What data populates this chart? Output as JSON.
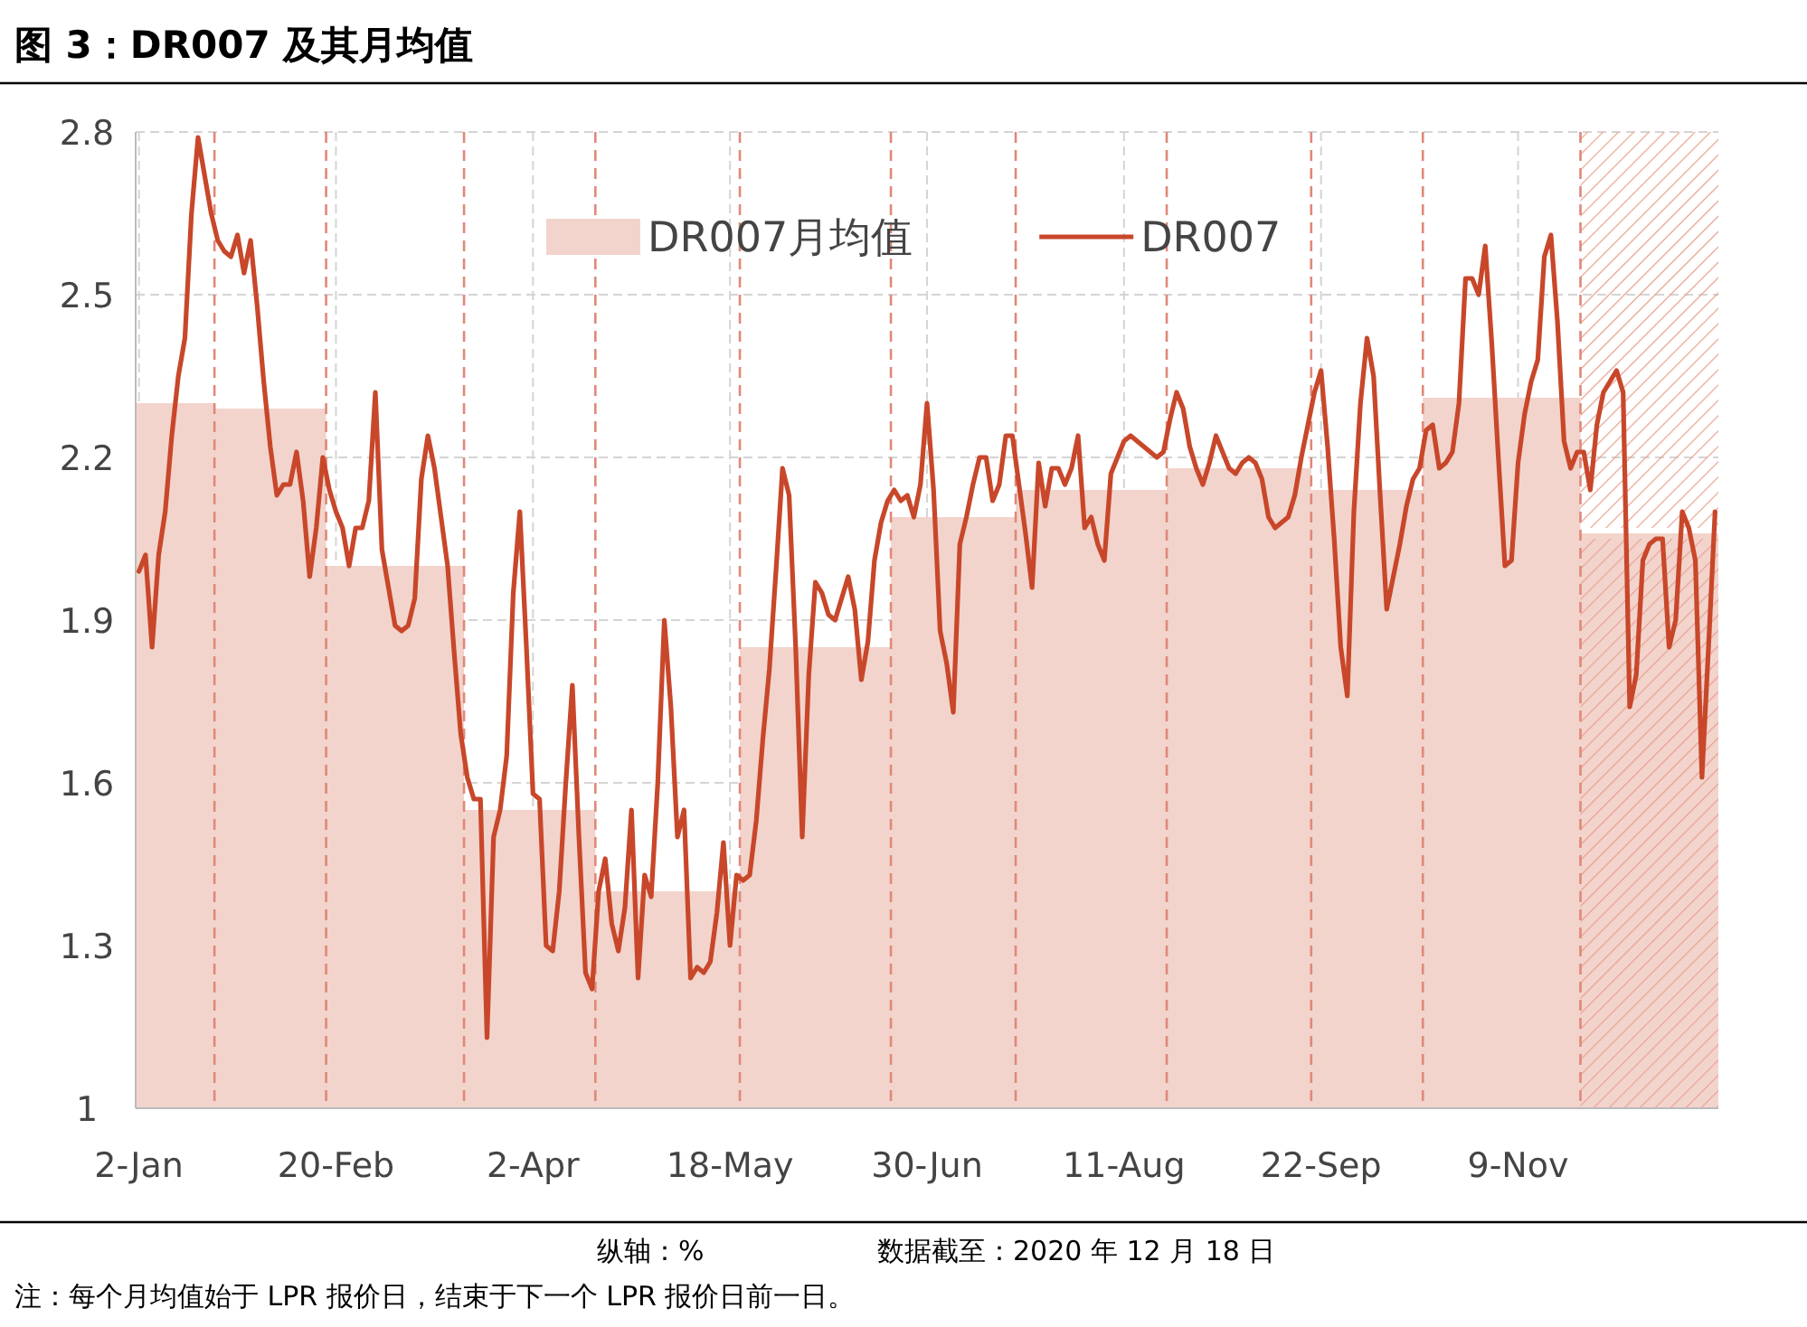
{
  "chart_data": {
    "type": "line",
    "title": "图 3：DR007 及其月均值",
    "annotations": [
      "纵轴：%",
      "数据截至：2020 年 12 月 18 日",
      "注：每个月均值始于 LPR 报价日，结束于下一个 LPR 报价日前一日。"
    ],
    "categories": [
      "2-Jan",
      null,
      null,
      null,
      null,
      null,
      null,
      null,
      null,
      null,
      null,
      null,
      null,
      null,
      null,
      null,
      null,
      null,
      null,
      null,
      null,
      null,
      null,
      null,
      null,
      null,
      null,
      null,
      null,
      null,
      "20-Feb",
      null,
      null,
      null,
      null,
      null,
      null,
      null,
      null,
      null,
      null,
      null,
      null,
      null,
      null,
      null,
      null,
      null,
      null,
      null,
      null,
      null,
      null,
      null,
      null,
      null,
      null,
      null,
      null,
      null,
      "2-Apr",
      null,
      null,
      null,
      null,
      null,
      null,
      null,
      null,
      null,
      null,
      null,
      null,
      null,
      null,
      null,
      null,
      null,
      null,
      null,
      null,
      null,
      null,
      null,
      null,
      null,
      null,
      null,
      null,
      null,
      "18-May",
      null,
      null,
      null,
      null,
      null,
      null,
      null,
      null,
      null,
      null,
      null,
      null,
      null,
      null,
      null,
      null,
      null,
      null,
      null,
      null,
      null,
      null,
      null,
      null,
      null,
      null,
      null,
      null,
      null,
      "30-Jun",
      null,
      null,
      null,
      null,
      null,
      null,
      null,
      null,
      null,
      null,
      null,
      null,
      null,
      null,
      null,
      null,
      null,
      null,
      null,
      null,
      null,
      null,
      null,
      null,
      null,
      null,
      null,
      null,
      null,
      "11-Aug",
      null,
      null,
      null,
      null,
      null,
      null,
      null,
      null,
      null,
      null,
      null,
      null,
      null,
      null,
      null,
      null,
      null,
      null,
      null,
      null,
      null,
      null,
      null,
      null,
      null,
      null,
      null,
      null,
      null,
      "22-Sep",
      null,
      null,
      null,
      null,
      null,
      null,
      null,
      null,
      null,
      null,
      null,
      null,
      null,
      null,
      null,
      null,
      null,
      null,
      null,
      null,
      null,
      null,
      null,
      null,
      null,
      null,
      null,
      null,
      null,
      "9-Nov",
      null,
      null,
      null,
      null,
      null,
      null,
      null,
      null,
      null,
      null,
      null,
      null,
      null,
      null,
      null,
      null,
      null,
      null,
      null,
      null,
      null,
      null,
      null,
      null,
      null,
      null,
      null,
      null,
      null,
      null
    ],
    "ylim": [
      1,
      2.8
    ],
    "yticks": [
      1,
      1.3,
      1.6,
      1.9,
      2.2,
      2.5,
      2.8
    ],
    "grid": true,
    "legend": "top",
    "series": [
      {
        "name": "DR007月均值",
        "type": "area",
        "color": "#f2d4cc",
        "values": [
          2.3,
          2.3,
          2.3,
          2.3,
          2.3,
          2.3,
          2.3,
          2.3,
          2.3,
          2.3,
          2.3,
          2.3,
          2.29,
          2.29,
          2.29,
          2.29,
          2.29,
          2.29,
          2.29,
          2.29,
          2.29,
          2.29,
          2.29,
          2.29,
          2.29,
          2.29,
          2.29,
          2.29,
          2.29,
          2.0,
          2.0,
          2.0,
          2.0,
          2.0,
          2.0,
          2.0,
          2.0,
          2.0,
          2.0,
          2.0,
          2.0,
          2.0,
          2.0,
          2.0,
          2.0,
          2.0,
          2.0,
          2.0,
          2.0,
          2.0,
          1.55,
          1.55,
          1.55,
          1.55,
          1.55,
          1.55,
          1.55,
          1.55,
          1.55,
          1.55,
          1.55,
          1.55,
          1.55,
          1.55,
          1.55,
          1.55,
          1.55,
          1.55,
          1.55,
          1.55,
          1.4,
          1.4,
          1.4,
          1.4,
          1.4,
          1.4,
          1.4,
          1.4,
          1.4,
          1.4,
          1.4,
          1.4,
          1.4,
          1.4,
          1.4,
          1.4,
          1.4,
          1.4,
          1.4,
          1.4,
          1.4,
          1.4,
          1.85,
          1.85,
          1.85,
          1.85,
          1.85,
          1.85,
          1.85,
          1.85,
          1.85,
          1.85,
          1.85,
          1.85,
          1.85,
          1.85,
          1.85,
          1.85,
          1.85,
          1.85,
          1.85,
          1.85,
          1.85,
          1.85,
          1.85,
          2.09,
          2.09,
          2.09,
          2.09,
          2.09,
          2.09,
          2.09,
          2.09,
          2.09,
          2.09,
          2.09,
          2.09,
          2.09,
          2.09,
          2.09,
          2.09,
          2.09,
          2.09,
          2.09,
          2.14,
          2.14,
          2.14,
          2.14,
          2.14,
          2.14,
          2.14,
          2.14,
          2.14,
          2.14,
          2.14,
          2.14,
          2.14,
          2.14,
          2.14,
          2.14,
          2.14,
          2.14,
          2.14,
          2.14,
          2.14,
          2.14,
          2.14,
          2.18,
          2.18,
          2.18,
          2.18,
          2.18,
          2.18,
          2.18,
          2.18,
          2.18,
          2.18,
          2.18,
          2.18,
          2.18,
          2.18,
          2.18,
          2.18,
          2.18,
          2.18,
          2.18,
          2.18,
          2.18,
          2.18,
          2.14,
          2.14,
          2.14,
          2.14,
          2.14,
          2.14,
          2.14,
          2.14,
          2.14,
          2.14,
          2.14,
          2.14,
          2.14,
          2.14,
          2.14,
          2.14,
          2.14,
          2.31,
          2.31,
          2.31,
          2.31,
          2.31,
          2.31,
          2.31,
          2.31,
          2.31,
          2.31,
          2.31,
          2.31,
          2.31,
          2.31,
          2.31,
          2.31,
          2.31,
          2.31,
          2.31,
          2.31,
          2.31,
          2.31,
          2.31,
          2.31,
          2.06,
          2.06,
          2.06,
          2.06,
          2.06,
          2.06,
          2.06,
          2.06,
          2.06,
          2.06,
          2.06,
          2.06,
          2.06,
          2.06,
          2.06,
          2.06,
          2.06,
          2.06,
          2.06,
          2.06,
          2.06
        ]
      },
      {
        "name": "DR007",
        "color": "#c8472a",
        "values": [
          1.99,
          2.02,
          1.85,
          2.02,
          2.1,
          2.24,
          2.35,
          2.42,
          2.65,
          2.79,
          2.72,
          2.65,
          2.6,
          2.58,
          2.57,
          2.61,
          2.54,
          2.6,
          2.48,
          2.34,
          2.22,
          2.13,
          2.15,
          2.15,
          2.21,
          2.12,
          1.98,
          2.07,
          2.2,
          2.14,
          2.1,
          2.07,
          2.0,
          2.07,
          2.07,
          2.12,
          2.32,
          2.03,
          1.96,
          1.89,
          1.88,
          1.89,
          1.94,
          2.16,
          2.24,
          2.18,
          2.09,
          2.0,
          1.84,
          1.69,
          1.61,
          1.57,
          1.57,
          1.13,
          1.5,
          1.55,
          1.65,
          1.95,
          2.1,
          1.85,
          1.58,
          1.57,
          1.3,
          1.29,
          1.4,
          1.6,
          1.78,
          1.5,
          1.25,
          1.22,
          1.4,
          1.46,
          1.34,
          1.29,
          1.37,
          1.55,
          1.24,
          1.43,
          1.39,
          1.6,
          1.9,
          1.74,
          1.5,
          1.55,
          1.24,
          1.26,
          1.25,
          1.27,
          1.36,
          1.49,
          1.3,
          1.43,
          1.42,
          1.43,
          1.53,
          1.68,
          1.81,
          1.99,
          2.18,
          2.13,
          1.85,
          1.5,
          1.8,
          1.97,
          1.95,
          1.91,
          1.9,
          1.94,
          1.98,
          1.92,
          1.79,
          1.86,
          2.01,
          2.08,
          2.12,
          2.14,
          2.12,
          2.13,
          2.09,
          2.15,
          2.3,
          2.14,
          1.88,
          1.82,
          1.73,
          2.04,
          2.09,
          2.15,
          2.2,
          2.2,
          2.12,
          2.15,
          2.24,
          2.24,
          2.15,
          2.06,
          1.96,
          2.19,
          2.11,
          2.18,
          2.18,
          2.15,
          2.18,
          2.24,
          2.07,
          2.09,
          2.04,
          2.01,
          2.17,
          2.2,
          2.23,
          2.24,
          2.23,
          2.22,
          2.21,
          2.2,
          2.21,
          2.27,
          2.32,
          2.29,
          2.22,
          2.18,
          2.15,
          2.19,
          2.24,
          2.21,
          2.18,
          2.17,
          2.19,
          2.2,
          2.19,
          2.16,
          2.09,
          2.07,
          2.08,
          2.09,
          2.13,
          2.2,
          2.26,
          2.32,
          2.36,
          2.22,
          2.05,
          1.85,
          1.76,
          2.1,
          2.3,
          2.42,
          2.35,
          2.13,
          1.92,
          1.98,
          2.04,
          2.11,
          2.16,
          2.18,
          2.25,
          2.26,
          2.18,
          2.19,
          2.21,
          2.3,
          2.53,
          2.53,
          2.5,
          2.59,
          2.41,
          2.2,
          2.0,
          2.01,
          2.19,
          2.28,
          2.34,
          2.38,
          2.57,
          2.61,
          2.45,
          2.23,
          2.18,
          2.21,
          2.21,
          2.14,
          2.26,
          2.32,
          2.34,
          2.36,
          2.32,
          1.74,
          1.8,
          2.01,
          2.04,
          2.05,
          2.05,
          1.85,
          1.9,
          2.1,
          2.07,
          2.01,
          1.61,
          1.85,
          2.1
        ]
      }
    ]
  }
}
